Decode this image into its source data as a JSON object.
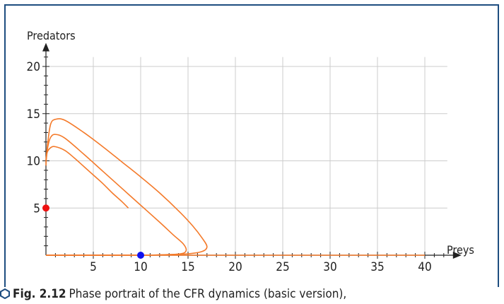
{
  "caption": {
    "label": "Fig. 2.12",
    "text": "Phase portrait of the CFR dynamics (basic version),"
  },
  "colors": {
    "frame": "#1e4d80",
    "curve": "#f47a2a",
    "grid": "#cccccc",
    "axis": "#222222",
    "point_red": "#ee1111",
    "point_blue": "#1111ee"
  },
  "chart_data": {
    "type": "line",
    "xlabel": "Preys",
    "ylabel": "Predators",
    "xlim": [
      0,
      42
    ],
    "ylim": [
      0,
      21
    ],
    "x_ticks": [
      "5",
      "10",
      "15",
      "20",
      "25",
      "30",
      "35",
      "40"
    ],
    "y_ticks": [
      "5",
      "10",
      "15",
      "20"
    ],
    "grid": true,
    "series": [
      {
        "values": [
          [
            0,
            0
          ],
          [
            40,
            0
          ]
        ]
      },
      {
        "values": [
          [
            0,
            9.5
          ],
          [
            0.1,
            10.8
          ],
          [
            0.5,
            11.4
          ],
          [
            1,
            11.5
          ],
          [
            2,
            11.1
          ],
          [
            3,
            10.3
          ],
          [
            4,
            9.4
          ],
          [
            5,
            8.5
          ],
          [
            6,
            7.6
          ],
          [
            7,
            6.6
          ],
          [
            8,
            5.7
          ],
          [
            8.7,
            5
          ]
        ]
      },
      {
        "values": [
          [
            0,
            9.8
          ],
          [
            0.2,
            11.5
          ],
          [
            0.5,
            12.5
          ],
          [
            1,
            12.8
          ],
          [
            2,
            12.4
          ],
          [
            4,
            10.7
          ],
          [
            6,
            8.9
          ],
          [
            8,
            7.1
          ],
          [
            10,
            5.3
          ],
          [
            12,
            3.5
          ],
          [
            13.5,
            2.1
          ],
          [
            14.5,
            1.2
          ],
          [
            14.8,
            0.5
          ],
          [
            14.2,
            0.15
          ],
          [
            12,
            0.03
          ],
          [
            10,
            0.01
          ],
          [
            0,
            0
          ]
        ]
      },
      {
        "values": [
          [
            0,
            10
          ],
          [
            0.2,
            12
          ],
          [
            0.5,
            13.9
          ],
          [
            1,
            14.4
          ],
          [
            2,
            14.3
          ],
          [
            4,
            13
          ],
          [
            6,
            11.5
          ],
          [
            8,
            9.9
          ],
          [
            10,
            8.3
          ],
          [
            12,
            6.6
          ],
          [
            14,
            4.7
          ],
          [
            15.5,
            3.1
          ],
          [
            16.5,
            1.8
          ],
          [
            17,
            0.9
          ],
          [
            16.5,
            0.4
          ],
          [
            15,
            0.15
          ],
          [
            12,
            0.04
          ],
          [
            10,
            0.01
          ],
          [
            0,
            0
          ]
        ]
      }
    ],
    "points": [
      {
        "x": 0,
        "y": 5,
        "color": "#ee1111"
      },
      {
        "x": 10,
        "y": 0,
        "color": "#1111ee"
      }
    ]
  }
}
